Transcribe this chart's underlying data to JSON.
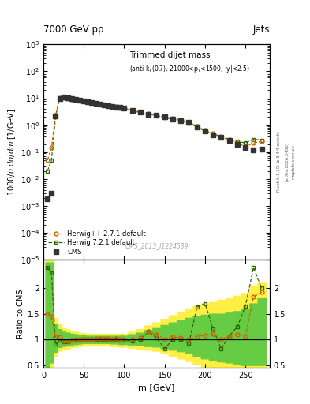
{
  "title_top": "7000 GeV pp",
  "title_right": "Jets",
  "ylabel_main": "1000/σ dσ/dm [1/GeV]",
  "ylabel_ratio": "Ratio to CMS",
  "xlabel": "m [GeV]",
  "watermark": "CMS_2013_I1224539",
  "right_label1": "Rivet 3.1.10, ≥ 3.4M events",
  "right_label2": "[arXiv:1306.3436]",
  "right_label3": "mcplots.cern.ch",
  "cms_m": [
    5,
    10,
    15,
    20,
    25,
    30,
    35,
    40,
    45,
    50,
    55,
    60,
    65,
    70,
    75,
    80,
    85,
    90,
    95,
    100,
    110,
    120,
    130,
    140,
    150,
    160,
    170,
    180,
    190,
    200,
    210,
    220,
    230,
    240,
    250,
    260,
    270
  ],
  "cms_y": [
    0.0018,
    0.003,
    2.2,
    10,
    11,
    10.5,
    9.5,
    9.0,
    8.5,
    8.0,
    7.5,
    7.0,
    6.5,
    6.0,
    5.5,
    5.2,
    5.0,
    4.7,
    4.5,
    4.3,
    3.5,
    3.0,
    2.6,
    2.3,
    2.0,
    1.7,
    1.5,
    1.3,
    0.85,
    0.6,
    0.45,
    0.35,
    0.28,
    0.2,
    0.15,
    0.12,
    0.13
  ],
  "hpp_m": [
    5,
    10,
    15,
    20,
    25,
    30,
    35,
    40,
    45,
    50,
    55,
    60,
    65,
    70,
    75,
    80,
    85,
    90,
    95,
    100,
    110,
    120,
    130,
    140,
    150,
    160,
    170,
    180,
    190,
    200,
    210,
    220,
    230,
    240,
    250,
    260,
    270
  ],
  "hpp_y": [
    0.05,
    0.15,
    2.3,
    10.5,
    10.8,
    10.2,
    9.4,
    9.0,
    8.5,
    8.1,
    7.6,
    7.1,
    6.6,
    6.1,
    5.6,
    5.3,
    5.0,
    4.8,
    4.5,
    4.3,
    3.5,
    3.1,
    2.7,
    2.4,
    2.0,
    1.8,
    1.55,
    1.3,
    0.9,
    0.65,
    0.5,
    0.35,
    0.3,
    0.22,
    0.16,
    0.22,
    0.25
  ],
  "h721_m": [
    5,
    10,
    15,
    20,
    25,
    30,
    35,
    40,
    45,
    50,
    55,
    60,
    65,
    70,
    75,
    80,
    85,
    90,
    95,
    100,
    110,
    120,
    130,
    140,
    150,
    160,
    170,
    180,
    190,
    200,
    210,
    220,
    230,
    240,
    250,
    260,
    270
  ],
  "h721_y": [
    0.02,
    0.05,
    2.0,
    9.8,
    10.5,
    10.0,
    9.3,
    8.8,
    8.4,
    8.0,
    7.5,
    7.0,
    6.5,
    6.0,
    5.5,
    5.2,
    4.9,
    4.7,
    4.4,
    4.2,
    3.4,
    3.0,
    2.6,
    2.3,
    1.9,
    1.7,
    1.5,
    1.2,
    0.88,
    0.6,
    0.48,
    0.38,
    0.3,
    0.25,
    0.22,
    0.3,
    0.28
  ],
  "hpp_ratio": [
    1.5,
    1.45,
    1.05,
    1.05,
    0.97,
    0.97,
    0.99,
    1.0,
    1.0,
    1.01,
    1.01,
    1.01,
    1.02,
    1.02,
    1.02,
    1.02,
    1.0,
    1.02,
    1.0,
    1.0,
    1.0,
    1.03,
    1.15,
    1.1,
    1.0,
    1.05,
    1.03,
    1.0,
    1.06,
    1.08,
    1.11,
    1.0,
    1.07,
    1.1,
    1.07,
    1.83,
    1.92
  ],
  "h721_ratio": [
    2.4,
    2.3,
    0.91,
    0.98,
    0.96,
    0.95,
    0.98,
    0.98,
    0.99,
    1.0,
    1.0,
    1.0,
    1.0,
    1.0,
    1.0,
    1.0,
    0.98,
    1.0,
    0.98,
    0.98,
    0.97,
    1.0,
    1.15,
    1.03,
    0.82,
    1.0,
    1.0,
    0.92,
    1.63,
    1.7,
    1.2,
    0.82,
    1.07,
    1.25,
    1.65,
    2.4,
    2.0
  ],
  "green_band_lo": [
    0.38,
    0.55,
    0.75,
    0.85,
    0.87,
    0.88,
    0.9,
    0.91,
    0.92,
    0.93,
    0.93,
    0.93,
    0.93,
    0.93,
    0.93,
    0.93,
    0.92,
    0.92,
    0.91,
    0.91,
    0.9,
    0.89,
    0.87,
    0.86,
    0.83,
    0.8,
    0.77,
    0.73,
    0.68,
    0.63,
    0.6,
    0.57,
    0.55,
    0.52,
    0.5,
    0.5,
    0.5
  ],
  "green_band_hi": [
    2.5,
    2.5,
    1.3,
    1.2,
    1.15,
    1.13,
    1.11,
    1.1,
    1.09,
    1.08,
    1.07,
    1.07,
    1.07,
    1.07,
    1.07,
    1.07,
    1.07,
    1.07,
    1.07,
    1.07,
    1.1,
    1.13,
    1.18,
    1.22,
    1.28,
    1.33,
    1.38,
    1.42,
    1.45,
    1.48,
    1.5,
    1.5,
    1.52,
    1.55,
    1.6,
    1.7,
    1.8
  ],
  "yellow_band_lo": [
    0.35,
    0.45,
    0.68,
    0.78,
    0.8,
    0.82,
    0.85,
    0.86,
    0.87,
    0.88,
    0.88,
    0.88,
    0.88,
    0.88,
    0.88,
    0.88,
    0.87,
    0.87,
    0.86,
    0.86,
    0.84,
    0.82,
    0.8,
    0.78,
    0.73,
    0.68,
    0.63,
    0.58,
    0.52,
    0.47,
    0.45,
    0.42,
    0.4,
    0.38,
    0.36,
    0.36,
    0.36
  ],
  "yellow_band_hi": [
    2.6,
    2.6,
    1.42,
    1.3,
    1.22,
    1.2,
    1.16,
    1.15,
    1.13,
    1.12,
    1.11,
    1.11,
    1.11,
    1.11,
    1.11,
    1.11,
    1.11,
    1.11,
    1.11,
    1.11,
    1.15,
    1.2,
    1.27,
    1.33,
    1.4,
    1.47,
    1.53,
    1.6,
    1.65,
    1.7,
    1.73,
    1.77,
    1.8,
    1.85,
    1.9,
    2.05,
    2.1
  ],
  "color_cms": "#333333",
  "color_hpp": "#cc6600",
  "color_h721": "#336600",
  "color_green_band": "#66cc44",
  "color_yellow_band": "#ffee44",
  "xlim": [
    0,
    280
  ],
  "ylim_main": [
    1e-05,
    1000.0
  ],
  "ylim_ratio": [
    0.45,
    2.55
  ]
}
